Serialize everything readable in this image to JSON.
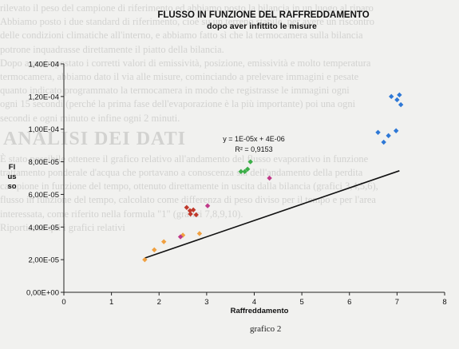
{
  "background_text": {
    "lines": [
      "rilevato il peso del campione di riferimento ed abbiamo posto la bilancia in un luogo al riparo",
      "Abbiamo posto i due standard di riferimento, cioè su un terreno stabile, per avere un riscontro",
      "delle condizioni climatiche all'interno, e abbiamo fatto sì che la termocamera sulla bilancia",
      "potrone inquadrasse direttamente il piatto della bilancia.",
      "Dopo aver impostato i corretti valori di emissività, posizione, emissività e molto temperatura",
      "termocamera, abbiamo dato il via alle misure, cominciando a prelevare immagini e pesate",
      "quanto indicato programmato la termocamera in modo che registrasse le immagini ogni",
      "ogni 15 secondi (perché la prima fase dell'evaporazione è la più importante) poi una ogni",
      "secondi e ogni minuto e infine ogni 2 minuti."
    ],
    "heading": "ANALISI DEI DATI",
    "lines_after": [
      "È stato possibile ottenere il grafico relativo all'andamento del flusso evaporativo in funzione",
      "trattamento ponderale d'acqua che portavano a conoscenza sia dell'andamento della perdita",
      "campione in funzione del tempo, ottenuto direttamente in uscita dalla bilancia (grafici 3,4,5,6),",
      "flusso in funzione del tempo, calcolato come differenza di peso diviso per il tempo e per l'area",
      "interessata, come riferito nella formula \"1\" (grafici 7,8,9,10).",
      "Riportiamo qui i grafici relativi"
    ]
  },
  "caption": "grafico 2",
  "chart_data": {
    "type": "scatter",
    "title": "FLUSSO IN FUNZIONE DEL RAFFREDDAMENTO",
    "subtitle": "dopo aver infittito le misure",
    "xlabel": "Raffreddamento",
    "ylabel_lines": [
      "Fl",
      "us",
      "so"
    ],
    "xlim": [
      0,
      8
    ],
    "ylim": [
      0,
      0.00014
    ],
    "x_ticks": [
      "0",
      "1",
      "2",
      "3",
      "4",
      "5",
      "6",
      "7",
      "8"
    ],
    "y_ticks": [
      "0,00E+00",
      "2,00E-05",
      "4,00E-05",
      "6,00E-05",
      "8,00E-05",
      "1,00E-04",
      "1,20E-04",
      "1,40E-04"
    ],
    "trendline": {
      "slope": 1e-05,
      "intercept": 4e-06,
      "x_range": [
        1.7,
        7.05
      ],
      "equation": "y = 1E-05x + 4E-06",
      "r2": "R² = 0,9153"
    },
    "series": [
      {
        "color": "#f0a040",
        "points": [
          [
            1.7,
            2e-05
          ],
          [
            1.9,
            2.6e-05
          ],
          [
            2.1,
            3.1e-05
          ],
          [
            2.5,
            3.5e-05
          ],
          [
            2.85,
            3.6e-05
          ]
        ]
      },
      {
        "color": "#c0392b",
        "points": [
          [
            2.58,
            5.2e-05
          ],
          [
            2.66,
            4.8e-05
          ],
          [
            2.72,
            5.05e-05
          ],
          [
            2.78,
            4.75e-05
          ],
          [
            2.65,
            5e-05
          ]
        ]
      },
      {
        "color": "#c03a8a",
        "points": [
          [
            2.45,
            3.4e-05
          ],
          [
            3.02,
            5.3e-05
          ],
          [
            4.32,
            7e-05
          ]
        ]
      },
      {
        "color": "#3cae48",
        "points": [
          [
            3.72,
            7.4e-05
          ],
          [
            3.8,
            7.4e-05
          ],
          [
            3.86,
            7.55e-05
          ],
          [
            3.92,
            8e-05
          ]
        ]
      },
      {
        "color": "#2e78d6",
        "points": [
          [
            6.6,
            9.8e-05
          ],
          [
            6.72,
            9.2e-05
          ],
          [
            6.82,
            9.6e-05
          ],
          [
            6.88,
            0.00012
          ],
          [
            6.98,
            9.9e-05
          ],
          [
            7.0,
            0.000118
          ],
          [
            7.05,
            0.000121
          ],
          [
            7.08,
            0.000115
          ]
        ]
      }
    ]
  }
}
